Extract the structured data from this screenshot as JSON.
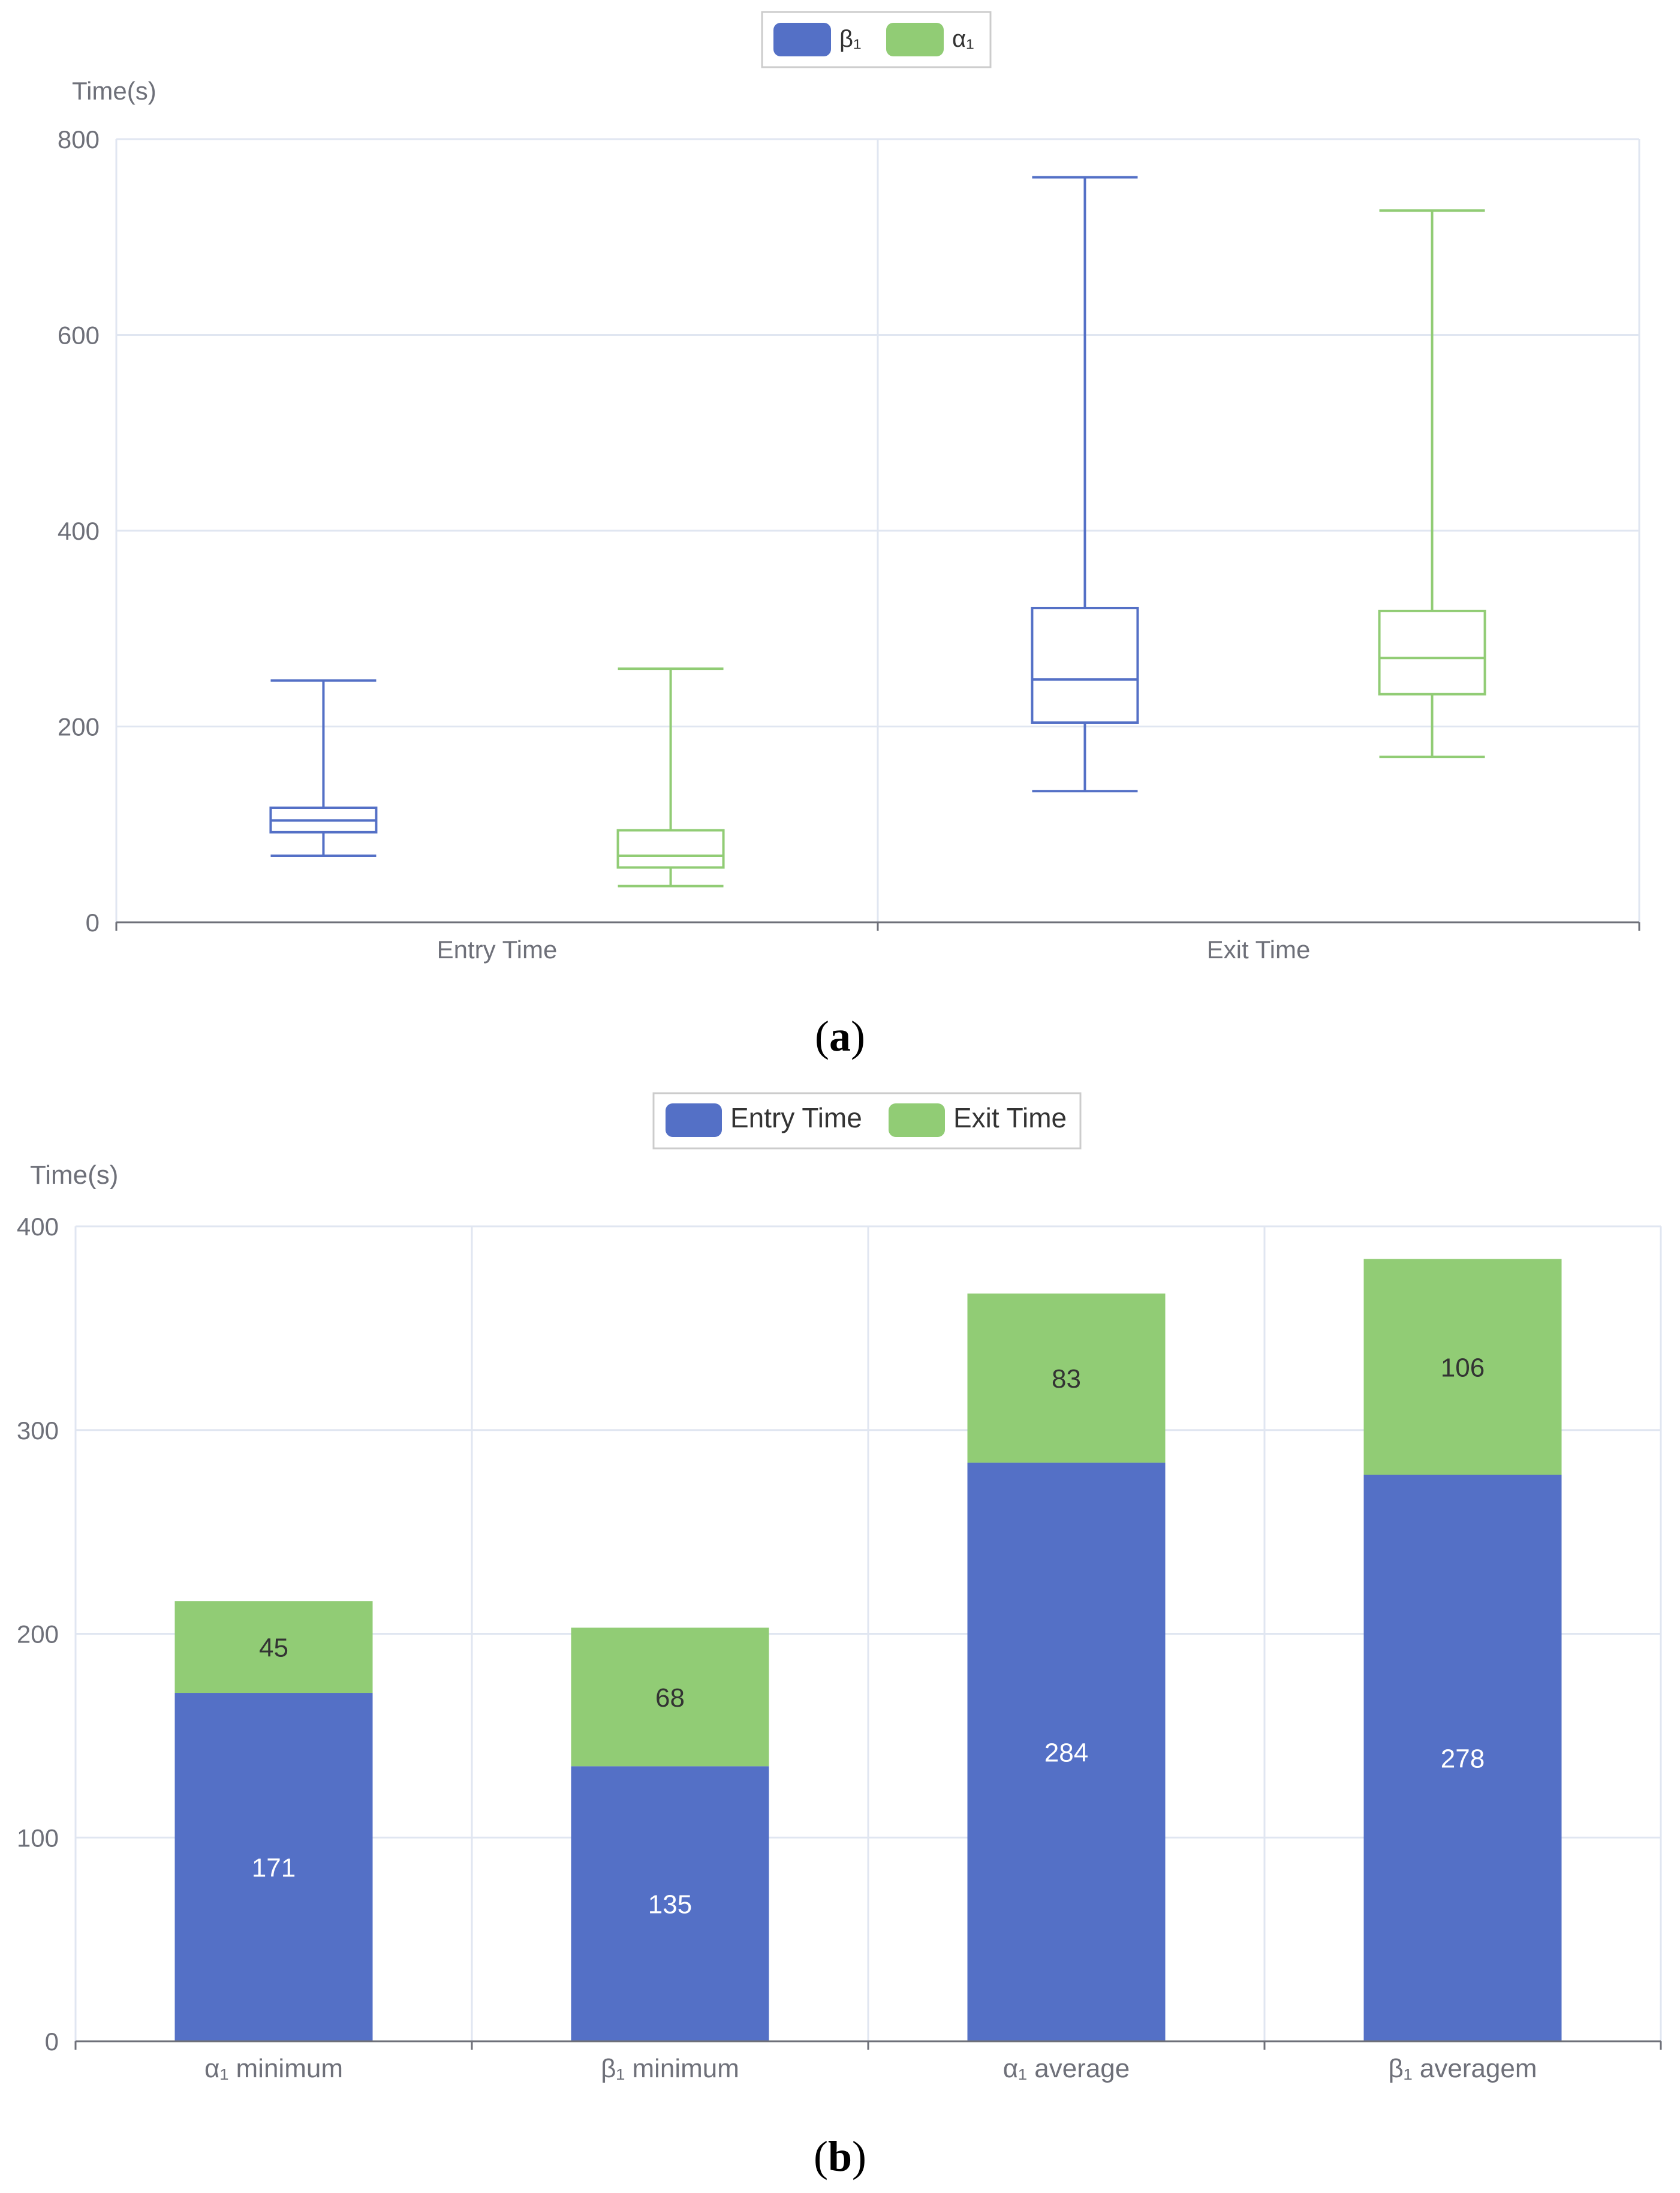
{
  "chart_data": [
    {
      "type": "boxplot",
      "panel_label": "a",
      "ylabel": "Time(s)",
      "ylim": [
        0,
        800
      ],
      "yticks": [
        0,
        200,
        400,
        600,
        800
      ],
      "categories": [
        "Entry Time",
        "Exit Time"
      ],
      "legend": {
        "placement": "top-center"
      },
      "series": [
        {
          "name": "β₁",
          "color": "#5470c6",
          "boxes": [
            {
              "min": 68,
              "q1": 92,
              "median": 104,
              "q3": 117,
              "max": 247
            },
            {
              "min": 134,
              "q1": 204,
              "median": 248,
              "q3": 321,
              "max": 761
            }
          ]
        },
        {
          "name": "α₁",
          "color": "#91cc75",
          "boxes": [
            {
              "min": 37,
              "q1": 56,
              "median": 68,
              "q3": 94,
              "max": 259
            },
            {
              "min": 169,
              "q1": 233,
              "median": 270,
              "q3": 318,
              "max": 727
            }
          ]
        }
      ]
    },
    {
      "type": "bar",
      "stacked": true,
      "panel_label": "b",
      "ylabel": "Time(s)",
      "ylim": [
        0,
        400
      ],
      "yticks": [
        0,
        100,
        200,
        300,
        400
      ],
      "categories": [
        "α₁ minimum",
        "β₁ minimum",
        "α₁ average",
        "β₁ averagem"
      ],
      "legend": {
        "placement": "top-center"
      },
      "series": [
        {
          "name": "Entry Time",
          "color": "#5470c6",
          "label_color": "#ffffff",
          "values": [
            171,
            135,
            284,
            278
          ]
        },
        {
          "name": "Exit Time",
          "color": "#91cc75",
          "label_color": "#333333",
          "values": [
            45,
            68,
            83,
            106
          ]
        }
      ]
    }
  ]
}
